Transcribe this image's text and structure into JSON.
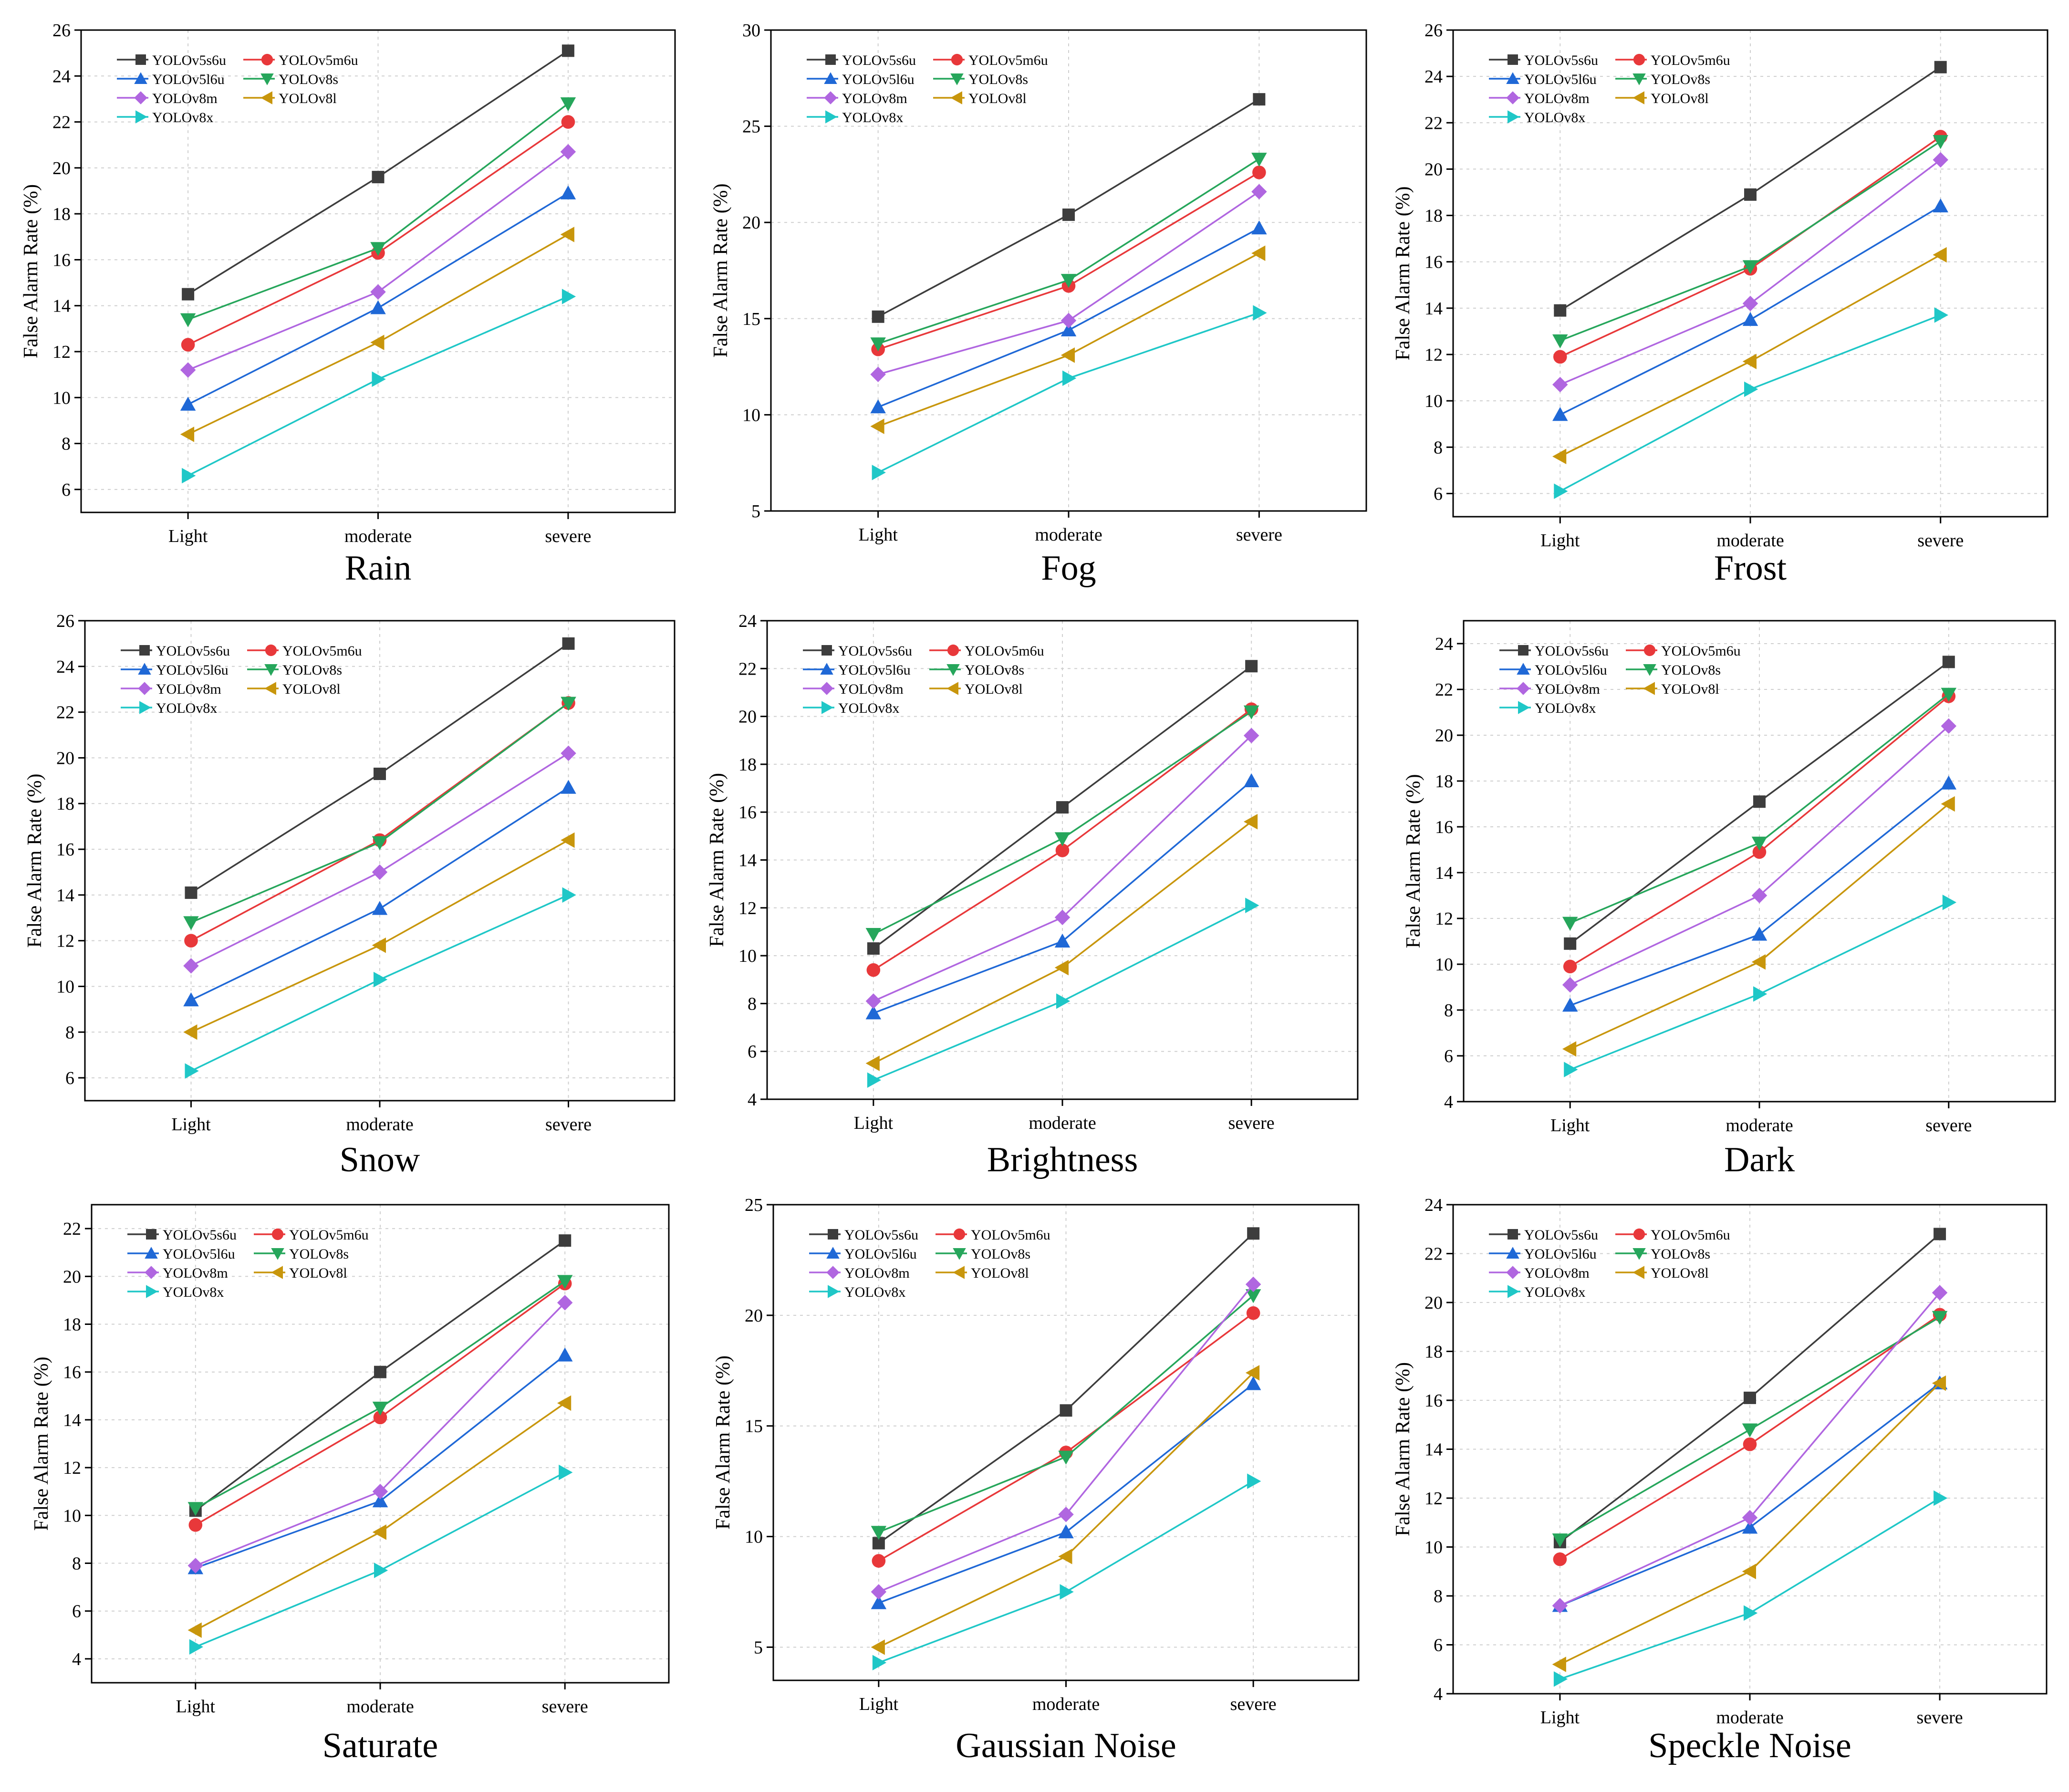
{
  "figure": {
    "series_names": [
      "YOLOv5s6u",
      "YOLOv5m6u",
      "YOLOv5l6u",
      "YOLOv8s",
      "YOLOv8m",
      "YOLOv8l",
      "YOLOv8x"
    ],
    "series_colors": [
      "#3d3d3d",
      "#e8383a",
      "#1f68d6",
      "#26a65b",
      "#b066e0",
      "#c8960c",
      "#1fc7c7"
    ],
    "series_markers": [
      "square",
      "circle",
      "triangle-up",
      "triangle-down",
      "diamond",
      "triangle-left",
      "triangle-right"
    ],
    "marker_semantic_names": [
      "square-marker-icon",
      "circle-marker-icon",
      "triangle-up-marker-icon",
      "triangle-down-marker-icon",
      "diamond-marker-icon",
      "triangle-left-marker-icon",
      "triangle-right-marker-icon"
    ]
  },
  "chart_data": [
    {
      "type": "line",
      "panel_title": "Rain",
      "ylabel": "False Alarm Rate (%)",
      "xlabel": "",
      "categories": [
        "Light",
        "moderate",
        "severe"
      ],
      "ylim": [
        5,
        26
      ],
      "yticks": [
        6,
        8,
        10,
        12,
        14,
        16,
        18,
        20,
        22,
        24,
        26
      ],
      "grid": true,
      "legend": "top-left",
      "series": [
        {
          "name": "YOLOv5s6u",
          "values": [
            14.5,
            19.6,
            25.1
          ]
        },
        {
          "name": "YOLOv5m6u",
          "values": [
            12.3,
            16.3,
            22.0
          ]
        },
        {
          "name": "YOLOv5l6u",
          "values": [
            9.7,
            13.9,
            18.9
          ]
        },
        {
          "name": "YOLOv8s",
          "values": [
            13.4,
            16.5,
            22.8
          ]
        },
        {
          "name": "YOLOv8m",
          "values": [
            11.2,
            14.6,
            20.7
          ]
        },
        {
          "name": "YOLOv8l",
          "values": [
            8.4,
            12.4,
            17.1
          ]
        },
        {
          "name": "YOLOv8x",
          "values": [
            6.6,
            10.8,
            14.4
          ]
        }
      ]
    },
    {
      "type": "line",
      "panel_title": "Fog",
      "ylabel": "False Alarm Rate (%)",
      "xlabel": "",
      "categories": [
        "Light",
        "moderate",
        "severe"
      ],
      "ylim": [
        5,
        30
      ],
      "yticks": [
        5,
        10,
        15,
        20,
        25,
        30
      ],
      "grid": true,
      "legend": "top-left",
      "series": [
        {
          "name": "YOLOv5s6u",
          "values": [
            15.1,
            20.4,
            26.4
          ]
        },
        {
          "name": "YOLOv5m6u",
          "values": [
            13.4,
            16.7,
            22.6
          ]
        },
        {
          "name": "YOLOv5l6u",
          "values": [
            10.4,
            14.4,
            19.7
          ]
        },
        {
          "name": "YOLOv8s",
          "values": [
            13.7,
            17.0,
            23.3
          ]
        },
        {
          "name": "YOLOv8m",
          "values": [
            12.1,
            14.9,
            21.6
          ]
        },
        {
          "name": "YOLOv8l",
          "values": [
            9.4,
            13.1,
            18.4
          ]
        },
        {
          "name": "YOLOv8x",
          "values": [
            7.0,
            11.9,
            15.3
          ]
        }
      ]
    },
    {
      "type": "line",
      "panel_title": "Frost",
      "ylabel": "False Alarm Rate (%)",
      "xlabel": "",
      "categories": [
        "Light",
        "moderate",
        "severe"
      ],
      "ylim": [
        5,
        26
      ],
      "yticks": [
        6,
        8,
        10,
        12,
        14,
        16,
        18,
        20,
        22,
        24,
        26
      ],
      "grid": true,
      "legend": "top-left",
      "series": [
        {
          "name": "YOLOv5s6u",
          "values": [
            13.9,
            18.9,
            24.4
          ]
        },
        {
          "name": "YOLOv5m6u",
          "values": [
            11.9,
            15.7,
            21.4
          ]
        },
        {
          "name": "YOLOv5l6u",
          "values": [
            9.4,
            13.5,
            18.4
          ]
        },
        {
          "name": "YOLOv8s",
          "values": [
            12.6,
            15.8,
            21.2
          ]
        },
        {
          "name": "YOLOv8m",
          "values": [
            10.7,
            14.2,
            20.4
          ]
        },
        {
          "name": "YOLOv8l",
          "values": [
            7.6,
            11.7,
            16.3
          ]
        },
        {
          "name": "YOLOv8x",
          "values": [
            6.1,
            10.5,
            13.7
          ]
        }
      ]
    },
    {
      "type": "line",
      "panel_title": "Snow",
      "ylabel": "False Alarm Rate (%)",
      "xlabel": "",
      "categories": [
        "Light",
        "moderate",
        "severe"
      ],
      "ylim": [
        5,
        26
      ],
      "yticks": [
        6,
        8,
        10,
        12,
        14,
        16,
        18,
        20,
        22,
        24,
        26
      ],
      "grid": true,
      "legend": "top-left",
      "series": [
        {
          "name": "YOLOv5s6u",
          "values": [
            14.1,
            19.3,
            25.0
          ]
        },
        {
          "name": "YOLOv5m6u",
          "values": [
            12.0,
            16.4,
            22.4
          ]
        },
        {
          "name": "YOLOv5l6u",
          "values": [
            9.4,
            13.4,
            18.7
          ]
        },
        {
          "name": "YOLOv8s",
          "values": [
            12.8,
            16.3,
            22.4
          ]
        },
        {
          "name": "YOLOv8m",
          "values": [
            10.9,
            15.0,
            20.2
          ]
        },
        {
          "name": "YOLOv8l",
          "values": [
            8.0,
            11.8,
            16.4
          ]
        },
        {
          "name": "YOLOv8x",
          "values": [
            6.3,
            10.3,
            14.0
          ]
        }
      ]
    },
    {
      "type": "line",
      "panel_title": "Brightness",
      "ylabel": "False Alarm Rate (%)",
      "xlabel": "",
      "categories": [
        "Light",
        "moderate",
        "severe"
      ],
      "ylim": [
        4,
        24
      ],
      "yticks": [
        4,
        6,
        8,
        10,
        12,
        14,
        16,
        18,
        20,
        22,
        24
      ],
      "grid": true,
      "legend": "top-left",
      "series": [
        {
          "name": "YOLOv5s6u",
          "values": [
            10.3,
            16.2,
            22.1
          ]
        },
        {
          "name": "YOLOv5m6u",
          "values": [
            9.4,
            14.4,
            20.3
          ]
        },
        {
          "name": "YOLOv5l6u",
          "values": [
            7.6,
            10.6,
            17.3
          ]
        },
        {
          "name": "YOLOv8s",
          "values": [
            10.9,
            14.9,
            20.2
          ]
        },
        {
          "name": "YOLOv8m",
          "values": [
            8.1,
            11.6,
            19.2
          ]
        },
        {
          "name": "YOLOv8l",
          "values": [
            5.5,
            9.5,
            15.6
          ]
        },
        {
          "name": "YOLOv8x",
          "values": [
            4.8,
            8.1,
            12.1
          ]
        }
      ]
    },
    {
      "type": "line",
      "panel_title": "Dark",
      "ylabel": "False Alarm Rate (%)",
      "xlabel": "",
      "categories": [
        "Light",
        "moderate",
        "severe"
      ],
      "ylim": [
        4,
        25
      ],
      "yticks": [
        4,
        6,
        8,
        10,
        12,
        14,
        16,
        18,
        20,
        22,
        24
      ],
      "grid": true,
      "legend": "top-left",
      "series": [
        {
          "name": "YOLOv5s6u",
          "values": [
            10.9,
            17.1,
            23.2
          ]
        },
        {
          "name": "YOLOv5m6u",
          "values": [
            9.9,
            14.9,
            21.7
          ]
        },
        {
          "name": "YOLOv5l6u",
          "values": [
            8.2,
            11.3,
            17.9
          ]
        },
        {
          "name": "YOLOv8s",
          "values": [
            11.8,
            15.3,
            21.8
          ]
        },
        {
          "name": "YOLOv8m",
          "values": [
            9.1,
            13.0,
            20.4
          ]
        },
        {
          "name": "YOLOv8l",
          "values": [
            6.3,
            10.1,
            17.0
          ]
        },
        {
          "name": "YOLOv8x",
          "values": [
            5.4,
            8.7,
            12.7
          ]
        }
      ]
    },
    {
      "type": "line",
      "panel_title": "Saturate",
      "ylabel": "False Alarm Rate (%)",
      "xlabel": "",
      "categories": [
        "Light",
        "moderate",
        "severe"
      ],
      "ylim": [
        3,
        23
      ],
      "yticks": [
        4,
        6,
        8,
        10,
        12,
        14,
        16,
        18,
        20,
        22
      ],
      "grid": true,
      "legend": "top-left",
      "series": [
        {
          "name": "YOLOv5s6u",
          "values": [
            10.2,
            16.0,
            21.5
          ]
        },
        {
          "name": "YOLOv5m6u",
          "values": [
            9.6,
            14.1,
            19.7
          ]
        },
        {
          "name": "YOLOv5l6u",
          "values": [
            7.8,
            10.6,
            16.7
          ]
        },
        {
          "name": "YOLOv8s",
          "values": [
            10.3,
            14.5,
            19.8
          ]
        },
        {
          "name": "YOLOv8m",
          "values": [
            7.9,
            11.0,
            18.9
          ]
        },
        {
          "name": "YOLOv8l",
          "values": [
            5.2,
            9.3,
            14.7
          ]
        },
        {
          "name": "YOLOv8x",
          "values": [
            4.5,
            7.7,
            11.8
          ]
        }
      ]
    },
    {
      "type": "line",
      "panel_title": "Gaussian Noise",
      "ylabel": "False Alarm Rate (%)",
      "xlabel": "",
      "categories": [
        "Light",
        "moderate",
        "severe"
      ],
      "ylim": [
        3.5,
        25
      ],
      "yticks": [
        5,
        10,
        15,
        20,
        25
      ],
      "grid": true,
      "legend": "top-left",
      "series": [
        {
          "name": "YOLOv5s6u",
          "values": [
            9.7,
            15.7,
            23.7
          ]
        },
        {
          "name": "YOLOv5m6u",
          "values": [
            8.9,
            13.8,
            20.1
          ]
        },
        {
          "name": "YOLOv5l6u",
          "values": [
            7.0,
            10.2,
            16.9
          ]
        },
        {
          "name": "YOLOv8s",
          "values": [
            10.2,
            13.6,
            20.9
          ]
        },
        {
          "name": "YOLOv8m",
          "values": [
            7.5,
            11.0,
            21.4
          ]
        },
        {
          "name": "YOLOv8l",
          "values": [
            5.0,
            9.1,
            17.4
          ]
        },
        {
          "name": "YOLOv8x",
          "values": [
            4.3,
            7.5,
            12.5
          ]
        }
      ]
    },
    {
      "type": "line",
      "panel_title": "Speckle Noise",
      "ylabel": "False Alarm Rate (%)",
      "xlabel": "",
      "categories": [
        "Light",
        "moderate",
        "severe"
      ],
      "ylim": [
        4,
        24
      ],
      "yticks": [
        4,
        6,
        8,
        10,
        12,
        14,
        16,
        18,
        20,
        22,
        24
      ],
      "grid": true,
      "legend": "top-left",
      "series": [
        {
          "name": "YOLOv5s6u",
          "values": [
            10.2,
            16.1,
            22.8
          ]
        },
        {
          "name": "YOLOv5m6u",
          "values": [
            9.5,
            14.2,
            19.5
          ]
        },
        {
          "name": "YOLOv5l6u",
          "values": [
            7.6,
            10.8,
            16.7
          ]
        },
        {
          "name": "YOLOv8s",
          "values": [
            10.3,
            14.8,
            19.4
          ]
        },
        {
          "name": "YOLOv8m",
          "values": [
            7.6,
            11.2,
            20.4
          ]
        },
        {
          "name": "YOLOv8l",
          "values": [
            5.2,
            9.0,
            16.7
          ]
        },
        {
          "name": "YOLOv8x",
          "values": [
            4.6,
            7.3,
            12.0
          ]
        }
      ]
    }
  ]
}
